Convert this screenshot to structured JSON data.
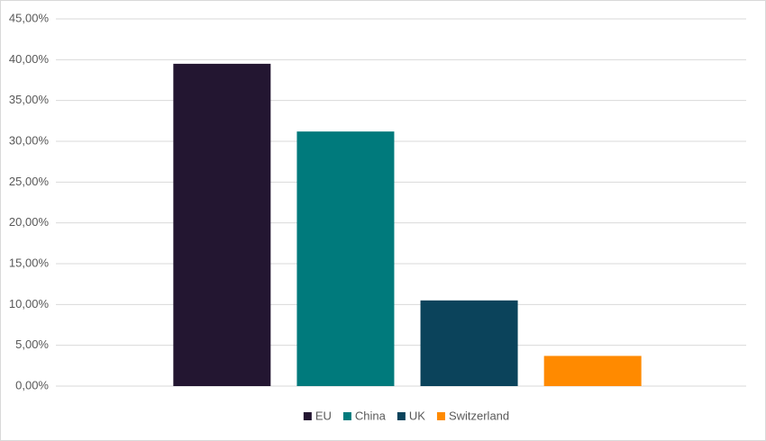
{
  "chart_data": {
    "type": "bar",
    "categories": [
      null
    ],
    "series": [
      {
        "name": "EU",
        "color": "#231631",
        "values": [
          39.5
        ]
      },
      {
        "name": "China",
        "color": "#007a7c",
        "values": [
          31.2
        ]
      },
      {
        "name": "UK",
        "color": "#0b435b",
        "values": [
          10.5
        ]
      },
      {
        "name": "Switzerland",
        "color": "#ff8a00",
        "values": [
          3.7
        ]
      }
    ],
    "ylim": [
      0,
      45
    ],
    "yticks": [
      {
        "value": 0,
        "label": "0,00%"
      },
      {
        "value": 5,
        "label": "5,00%"
      },
      {
        "value": 10,
        "label": "10,00%"
      },
      {
        "value": 15,
        "label": "15,00%"
      },
      {
        "value": 20,
        "label": "20,00%"
      },
      {
        "value": 25,
        "label": "25,00%"
      },
      {
        "value": 30,
        "label": "30,00%"
      },
      {
        "value": 35,
        "label": "35,00%"
      },
      {
        "value": 40,
        "label": "40,00%"
      },
      {
        "value": 45,
        "label": "45,00%"
      }
    ],
    "grid": true,
    "legend": "bottom"
  }
}
